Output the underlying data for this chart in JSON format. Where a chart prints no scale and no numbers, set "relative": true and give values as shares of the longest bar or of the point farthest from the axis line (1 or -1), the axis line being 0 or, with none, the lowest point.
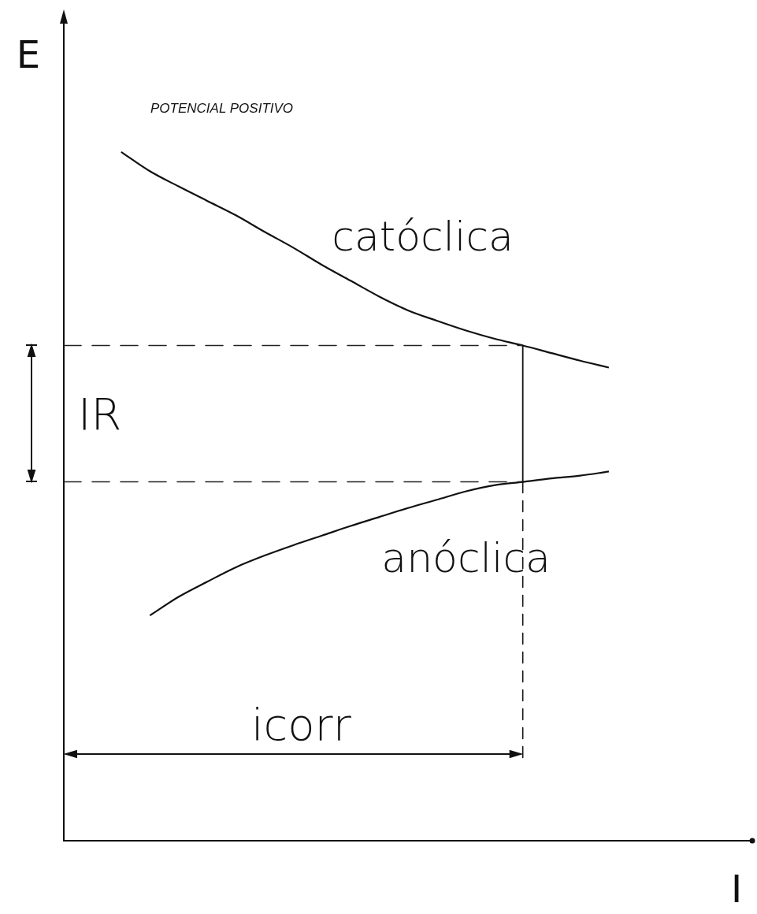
{
  "chart_data": {
    "type": "line",
    "relative": true,
    "xlabel": "I",
    "ylabel": "E",
    "marker": "none",
    "categories": [
      null,
      null,
      null,
      null,
      null,
      null,
      null,
      null,
      null,
      null,
      null,
      null,
      null,
      null,
      null,
      null,
      null,
      null,
      null,
      null,
      null,
      null,
      null,
      null,
      null
    ],
    "series": [
      {
        "name": "catóclica",
        "color": "#111111",
        "values": [
          null,
          null,
          1.0,
          0.972,
          0.95,
          0.929,
          0.908,
          0.884,
          0.861,
          0.836,
          0.813,
          0.79,
          0.77,
          0.755,
          0.741,
          0.729,
          0.719,
          0.708,
          0.697,
          0.687,
          null,
          null,
          null,
          null,
          null
        ]
      },
      {
        "name": "anóclica",
        "color": "#111111",
        "values": [
          null,
          null,
          null,
          0.327,
          0.354,
          0.376,
          0.397,
          0.414,
          0.429,
          0.443,
          0.457,
          0.47,
          0.483,
          0.495,
          0.507,
          0.516,
          0.521,
          0.526,
          0.53,
          0.536,
          null,
          null,
          null,
          null,
          null
        ]
      }
    ],
    "ref_lines": [
      {
        "axis": "y",
        "value": 0.719,
        "line_style": "dashed",
        "color": "#222222"
      },
      {
        "axis": "y",
        "value": 0.521,
        "line_style": "dashed",
        "color": "#222222"
      }
    ],
    "annotations": [
      "POTENCIAL POSITIVO",
      "IR",
      "icorr"
    ]
  }
}
